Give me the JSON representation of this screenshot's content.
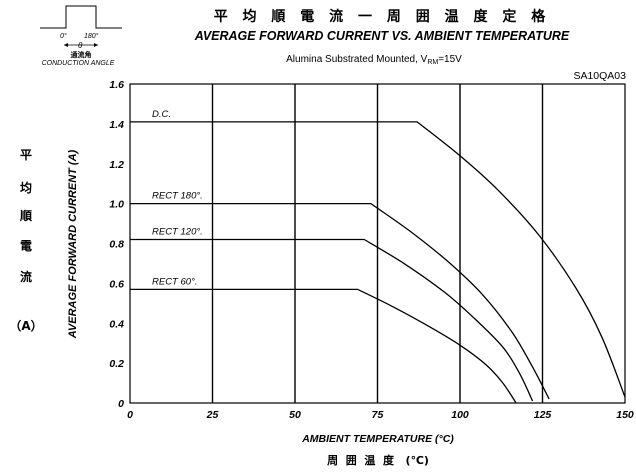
{
  "chart_data": {
    "type": "line",
    "title_cjk": "平 均 順 電 流 一 周 囲 温 度 定 格",
    "title": "AVERAGE FORWARD CURRENT VS. AMBIENT TEMPERATURE",
    "subtitle_prefix": "Alumina Substrated Mounted, V",
    "subtitle_sub": "RM",
    "subtitle_suffix": "=15V",
    "part_number": "SA10QA03",
    "xlabel": "AMBIENT TEMPERATURE (°C)",
    "xlabel_cjk": "周  囲  温  度   (℃)",
    "ylabel": "AVERAGE FORWARD CURRENT (A)",
    "ylabel_cjk": [
      "平",
      "均",
      "順",
      "電",
      "流",
      "（A）"
    ],
    "xlim": [
      0,
      150
    ],
    "ylim": [
      0,
      1.6
    ],
    "xticks": [
      0,
      25,
      50,
      75,
      100,
      125,
      150
    ],
    "yticks": [
      0,
      0.2,
      0.4,
      0.6,
      0.8,
      1.0,
      1.2,
      1.4,
      1.6
    ],
    "ytick_labels": [
      "0",
      "0.2",
      "0.4",
      "0.6",
      "0.8",
      "1.0",
      "1.2",
      "1.4",
      "1.6"
    ],
    "grid": true,
    "series": [
      {
        "name": "D.C.",
        "x": [
          0,
          87,
          100,
          112,
          124,
          135,
          143,
          150
        ],
        "y": [
          1.41,
          1.41,
          1.24,
          1.06,
          0.84,
          0.58,
          0.33,
          0.03
        ]
      },
      {
        "name": "RECT 180°.",
        "x": [
          0,
          73,
          85,
          97,
          107,
          116,
          122,
          127
        ],
        "y": [
          1.0,
          1.0,
          0.86,
          0.7,
          0.54,
          0.35,
          0.18,
          0.02
        ]
      },
      {
        "name": "RECT 120°.",
        "x": [
          0,
          71,
          83,
          95,
          104,
          113,
          118,
          122
        ],
        "y": [
          0.82,
          0.82,
          0.7,
          0.56,
          0.43,
          0.28,
          0.15,
          0.01
        ]
      },
      {
        "name": "RECT 60°.",
        "x": [
          0,
          69,
          80,
          91,
          100,
          108,
          113,
          117
        ],
        "y": [
          0.57,
          0.57,
          0.48,
          0.38,
          0.29,
          0.19,
          0.1,
          0.0
        ]
      }
    ]
  },
  "inset": {
    "label_0": "0°",
    "label_180": "180°",
    "label_theta": "θ",
    "label_cjk": "通流角",
    "label": "CONDUCTION ANGLE"
  }
}
